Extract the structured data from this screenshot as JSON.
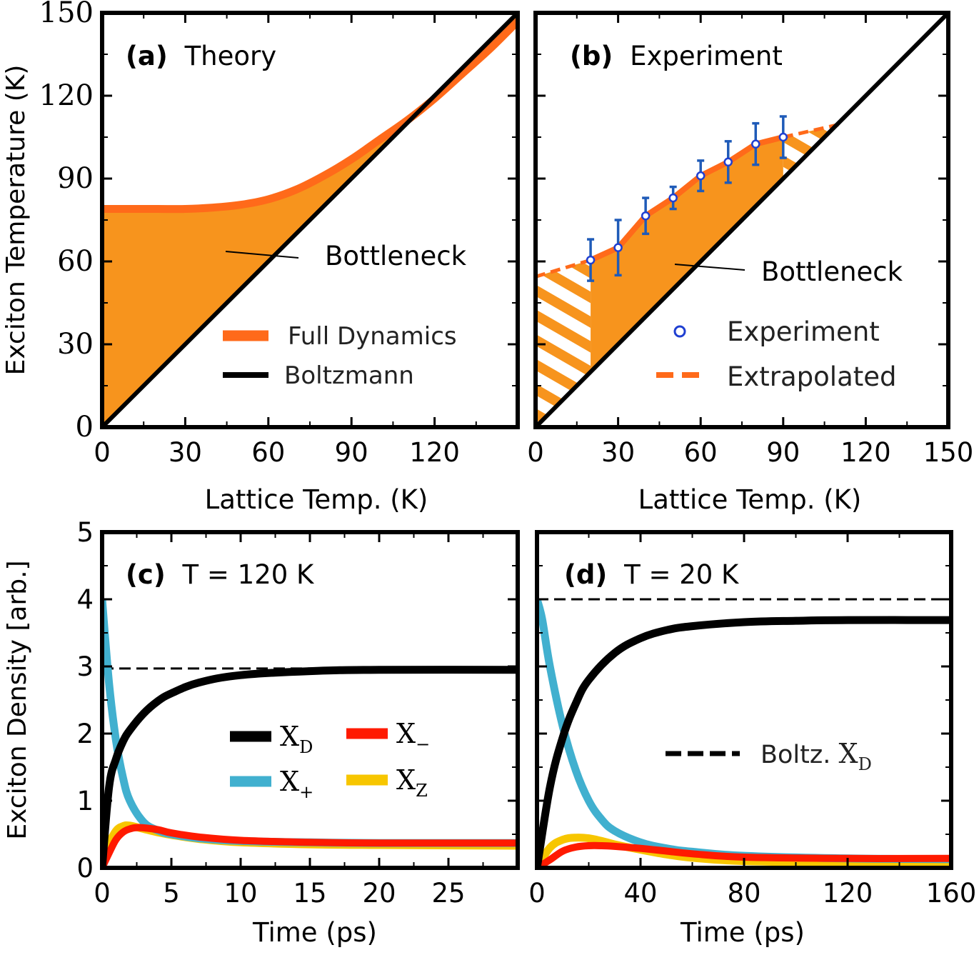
{
  "colors": {
    "orange_fill": "#f7941d",
    "orange_line": "#ff6a1a",
    "black": "#000000",
    "cyan": "#41b0cf",
    "red": "#ff1a00",
    "yellow": "#f7c600",
    "marker_blue": "#1f3fd1",
    "errorbar_blue": "#1f5bb8"
  },
  "chart_data": [
    {
      "panel": "a",
      "type": "area",
      "tag": "(a)",
      "title": "Theory",
      "xlabel": "Lattice Temp. (K)",
      "ylabel": "Exciton Temperature (K)",
      "xlim": [
        0,
        150
      ],
      "ylim": [
        0,
        150
      ],
      "xticks": [
        "0",
        "30",
        "60",
        "90",
        "120"
      ],
      "yticks": [
        "0",
        "30",
        "60",
        "90",
        "120",
        "150"
      ],
      "annotation": "Bottleneck",
      "legend": [
        "Full Dynamics",
        "Boltzmann"
      ],
      "series": [
        {
          "name": "Full Dynamics",
          "x": [
            0,
            10,
            20,
            30,
            40,
            50,
            60,
            70,
            80,
            90,
            100,
            110,
            120,
            130,
            140,
            150
          ],
          "y": [
            79,
            79,
            79,
            79,
            79.5,
            80.5,
            82.5,
            86,
            91,
            97,
            104,
            111,
            119,
            128,
            137,
            147
          ]
        },
        {
          "name": "Boltzmann",
          "x": [
            0,
            150
          ],
          "y": [
            0,
            150
          ]
        }
      ]
    },
    {
      "panel": "b",
      "type": "scatter",
      "tag": "(b)",
      "title": "Experiment",
      "xlabel": "Lattice Temp. (K)",
      "xlim": [
        0,
        150
      ],
      "ylim": [
        0,
        150
      ],
      "xticks": [
        "0",
        "30",
        "60",
        "90",
        "120",
        "150"
      ],
      "annotation": "Bottleneck",
      "legend": [
        "Experiment",
        "Extrapolated"
      ],
      "series": [
        {
          "name": "Experiment",
          "x": [
            20,
            30,
            40,
            50,
            60,
            70,
            80,
            90
          ],
          "y": [
            60.5,
            65,
            76.5,
            83,
            91,
            96,
            102.5,
            105
          ],
          "err": [
            7.5,
            10,
            6.5,
            4,
            5.5,
            7.5,
            7.5,
            7.5
          ]
        },
        {
          "name": "Extrapolated",
          "x": [
            0,
            20
          ],
          "y": [
            54.5,
            60.5
          ]
        },
        {
          "name": "Extrapolated",
          "x": [
            90,
            110
          ],
          "y": [
            105,
            109.5
          ]
        },
        {
          "x": [
            0,
            150
          ],
          "y": [
            0,
            150
          ]
        }
      ]
    },
    {
      "panel": "c",
      "type": "line",
      "tag": "(c)",
      "title": "T = 120 K",
      "xlabel": "Time (ps)",
      "ylabel": "Exciton Density [arb.]",
      "xlim": [
        0,
        30
      ],
      "ylim": [
        0,
        5
      ],
      "xticks": [
        "0",
        "5",
        "10",
        "15",
        "20",
        "25"
      ],
      "yticks": [
        "0",
        "1",
        "2",
        "3",
        "4",
        "5"
      ],
      "legend": [
        "X_D",
        "X_+",
        "X_−",
        "X_Z"
      ],
      "boltzmann_XD": 2.97,
      "series": [
        {
          "name": "X_D",
          "x": [
            0,
            0.5,
            1,
            1.5,
            2,
            3,
            4,
            5,
            7,
            10,
            15,
            20,
            30
          ],
          "y": [
            0,
            1.2,
            1.62,
            1.88,
            2.05,
            2.3,
            2.48,
            2.6,
            2.76,
            2.87,
            2.93,
            2.95,
            2.95
          ]
        },
        {
          "name": "X_+",
          "x": [
            0,
            0.5,
            1,
            1.5,
            2,
            3,
            4,
            5,
            7,
            10,
            15,
            20,
            30
          ],
          "y": [
            4.0,
            2.75,
            1.9,
            1.35,
            1.0,
            0.68,
            0.56,
            0.5,
            0.44,
            0.4,
            0.38,
            0.37,
            0.37
          ]
        },
        {
          "name": "X_−",
          "x": [
            0,
            0.5,
            1,
            1.5,
            2,
            2.7,
            4,
            5,
            7,
            10,
            15,
            20,
            30
          ],
          "y": [
            0,
            0.22,
            0.42,
            0.53,
            0.58,
            0.6,
            0.57,
            0.52,
            0.46,
            0.41,
            0.38,
            0.37,
            0.37
          ]
        },
        {
          "name": "X_Z",
          "x": [
            0,
            0.5,
            1,
            1.5,
            2,
            3,
            4,
            5,
            7,
            10,
            15,
            20,
            30
          ],
          "y": [
            0,
            0.35,
            0.55,
            0.62,
            0.63,
            0.58,
            0.53,
            0.49,
            0.43,
            0.38,
            0.35,
            0.34,
            0.33
          ]
        }
      ]
    },
    {
      "panel": "d",
      "type": "line",
      "tag": "(d)",
      "title": "T = 20 K",
      "xlabel": "Time (ps)",
      "xlim": [
        0,
        160
      ],
      "ylim": [
        0,
        5
      ],
      "xticks": [
        "0",
        "40",
        "80",
        "120",
        "160"
      ],
      "legend": [
        "Boltz. X_D"
      ],
      "boltzmann_XD": 4.0,
      "series": [
        {
          "name": "X_D",
          "x": [
            0,
            5,
            10,
            15,
            20,
            30,
            40,
            50,
            60,
            80,
            100,
            120,
            160
          ],
          "y": [
            0,
            1.2,
            1.95,
            2.45,
            2.8,
            3.2,
            3.42,
            3.54,
            3.6,
            3.66,
            3.68,
            3.69,
            3.69
          ]
        },
        {
          "name": "X_+",
          "x": [
            0,
            2,
            5,
            10,
            15,
            20,
            25,
            30,
            40,
            50,
            60,
            80,
            120,
            160
          ],
          "y": [
            4.0,
            3.7,
            3.0,
            2.1,
            1.45,
            1.0,
            0.72,
            0.55,
            0.38,
            0.29,
            0.24,
            0.18,
            0.14,
            0.13
          ]
        },
        {
          "name": "X_−",
          "x": [
            0,
            5,
            10,
            15,
            20,
            25,
            30,
            40,
            50,
            60,
            80,
            120,
            160
          ],
          "y": [
            0,
            0.12,
            0.25,
            0.31,
            0.33,
            0.33,
            0.32,
            0.29,
            0.25,
            0.21,
            0.16,
            0.14,
            0.14
          ]
        },
        {
          "name": "X_Z",
          "x": [
            0,
            5,
            10,
            15,
            20,
            25,
            30,
            40,
            50,
            60,
            80,
            120,
            160
          ],
          "y": [
            0,
            0.3,
            0.42,
            0.45,
            0.44,
            0.4,
            0.35,
            0.27,
            0.2,
            0.15,
            0.1,
            0.08,
            0.07
          ]
        }
      ]
    }
  ]
}
